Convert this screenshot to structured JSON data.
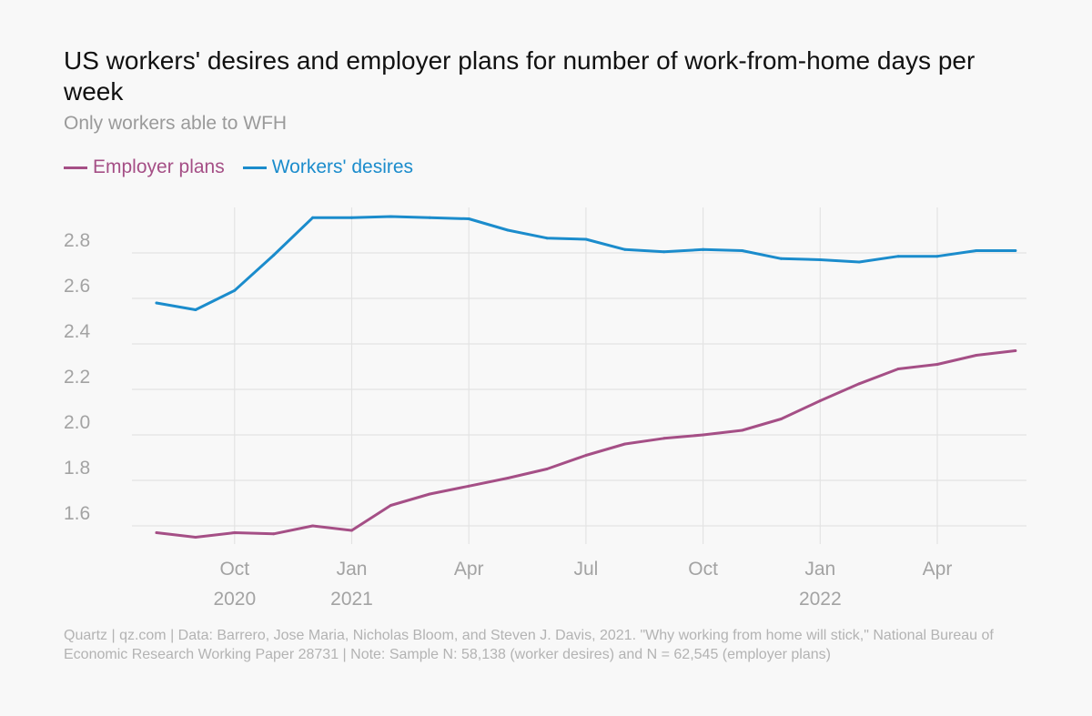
{
  "header": {
    "title": "US workers' desires and employer plans for number of work-from-home days per week",
    "subtitle": "Only workers able to WFH"
  },
  "footer": {
    "source": "Quartz | qz.com | Data: Barrero, Jose Maria, Nicholas Bloom, and Steven J. Davis, 2021. \"Why working from home will stick,\" National Bureau of Economic Research Working Paper 28731 | Note: Sample N: 58,138 (worker desires) and N = 62,545 (employer plans)"
  },
  "colors": {
    "employer": "#a54f86",
    "workers": "#1b8ccc",
    "grid": "#e3e3e3",
    "tick_text": "#a3a3a3"
  },
  "chart_data": {
    "type": "line",
    "x": [
      "2020-08",
      "2020-09",
      "2020-10",
      "2020-11",
      "2020-12",
      "2021-01",
      "2021-02",
      "2021-03",
      "2021-04",
      "2021-05",
      "2021-06",
      "2021-07",
      "2021-08",
      "2021-09",
      "2021-10",
      "2021-11",
      "2021-12",
      "2022-01",
      "2022-02",
      "2022-03",
      "2022-04",
      "2022-05",
      "2022-06"
    ],
    "series": [
      {
        "name": "Employer plans",
        "color": "#a54f86",
        "values": [
          1.57,
          1.55,
          1.57,
          1.565,
          1.6,
          1.58,
          1.69,
          1.74,
          1.775,
          1.81,
          1.85,
          1.91,
          1.96,
          1.985,
          2.0,
          2.02,
          2.07,
          2.15,
          2.225,
          2.29,
          2.31,
          2.35,
          2.37
        ]
      },
      {
        "name": "Workers' desires",
        "color": "#1b8ccc",
        "values": [
          2.58,
          2.55,
          2.635,
          2.79,
          2.955,
          2.955,
          2.96,
          2.955,
          2.95,
          2.9,
          2.865,
          2.86,
          2.815,
          2.805,
          2.815,
          2.81,
          2.775,
          2.77,
          2.76,
          2.785,
          2.785,
          2.81,
          2.81
        ]
      }
    ],
    "y_ticks": [
      "1.6",
      "1.8",
      "2.0",
      "2.2",
      "2.4",
      "2.6",
      "2.8"
    ],
    "ylim": [
      1.52,
      3.0
    ],
    "x_ticks": [
      {
        "month": "Oct",
        "year": "2020",
        "index": 2
      },
      {
        "month": "Jan",
        "year": "2021",
        "index": 5
      },
      {
        "month": "Apr",
        "year": "",
        "index": 8
      },
      {
        "month": "Jul",
        "year": "",
        "index": 11
      },
      {
        "month": "Oct",
        "year": "",
        "index": 14
      },
      {
        "month": "Jan",
        "year": "2022",
        "index": 17
      },
      {
        "month": "Apr",
        "year": "",
        "index": 20
      }
    ],
    "grid": true,
    "legend": "top-left",
    "title": "US workers' desires and employer plans for number of work-from-home days per week",
    "subtitle": "Only workers able to WFH"
  }
}
